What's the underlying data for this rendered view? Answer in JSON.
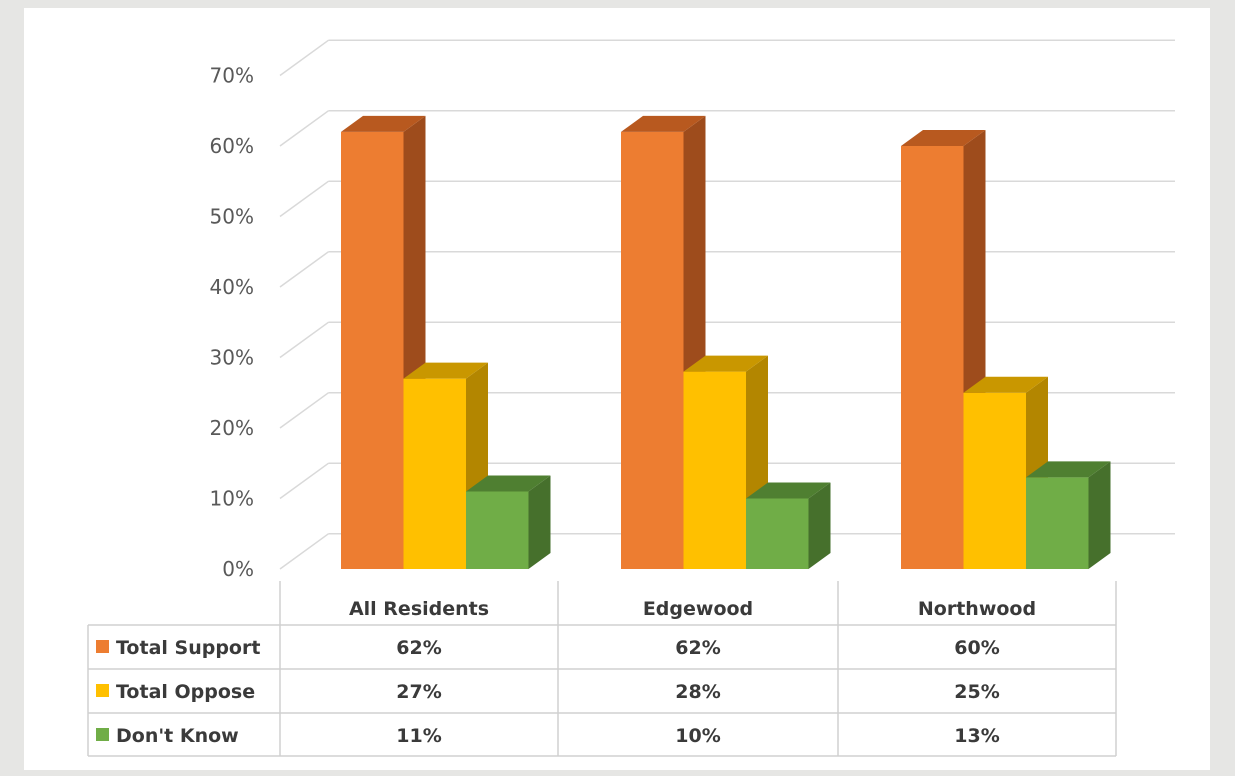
{
  "chart_data": {
    "type": "bar",
    "style": "3d-clustered-column-with-data-table",
    "categories": [
      "All Residents",
      "Edgewood",
      "Northwood"
    ],
    "series": [
      {
        "name": "Total Support",
        "values": [
          62,
          62,
          60
        ],
        "labels": [
          "62%",
          "62%",
          "60%"
        ],
        "color": "#ED7D31",
        "side_color": "#9E4C1C",
        "top_color": "#B8591F"
      },
      {
        "name": "Total Oppose",
        "values": [
          27,
          28,
          25
        ],
        "labels": [
          "27%",
          "28%",
          "25%"
        ],
        "color": "#FFC000",
        "side_color": "#B38600",
        "top_color": "#C99700"
      },
      {
        "name": "Don't Know",
        "values": [
          11,
          10,
          13
        ],
        "labels": [
          "11%",
          "10%",
          "13%"
        ],
        "color": "#70AD47",
        "side_color": "#46702C",
        "top_color": "#4F7F31"
      }
    ],
    "y_ticks": [
      "0%",
      "10%",
      "20%",
      "30%",
      "40%",
      "50%",
      "60%",
      "70%"
    ],
    "ylim": [
      0,
      70
    ],
    "grid": true,
    "legend": "data-table-left"
  }
}
